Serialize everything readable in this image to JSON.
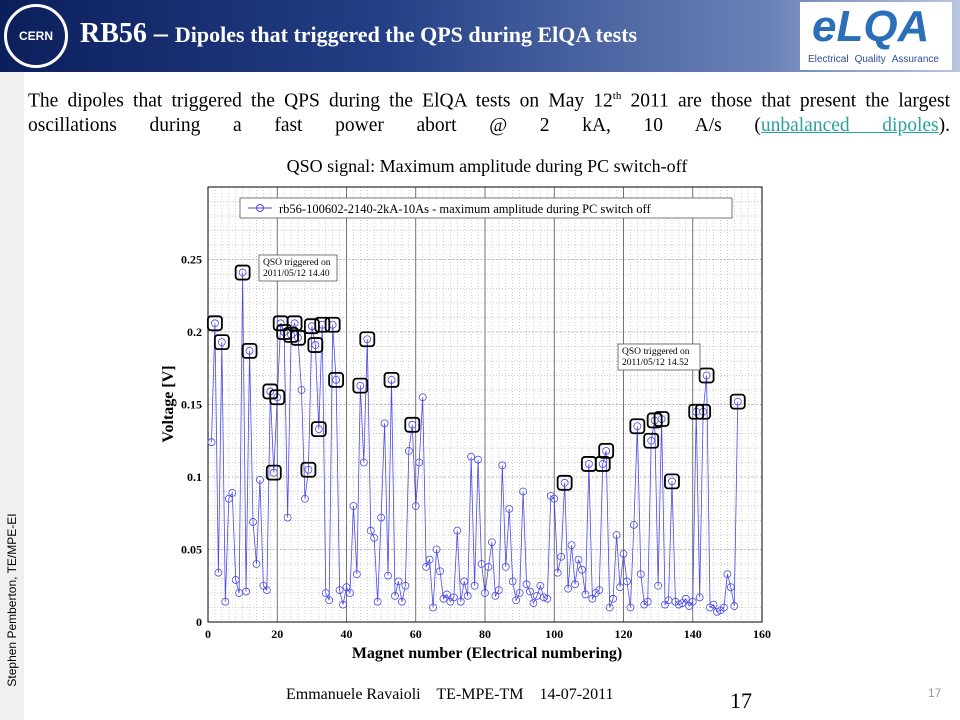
{
  "slide": {
    "title_lead": "RB56 – ",
    "title_rest": "Dipoles that triggered the QPS during ElQA tests",
    "logo_left": "CERN",
    "logo_right": "eLQA",
    "logo_right_sub": [
      "Electrical",
      "Quality",
      "Assurance"
    ],
    "body": [
      "The dipoles that triggered the QPS during the ElQA tests on May 12",
      "th",
      " 2011 are those that present the largest oscillations during a fast power abort @ 2 kA, 10 A/s (",
      "unbalanced dipoles",
      ")."
    ],
    "side_note": "Stephen Pemberton, TE/MPE-EI",
    "footer": "Emmanuele Ravaioli    TE-MPE-TM    14-07-2011",
    "page_big": "17",
    "page_small": "17"
  },
  "chart_data": {
    "type": "line",
    "title": "QSO signal: Maximum amplitude during PC switch-off",
    "x_label": "Magnet number (Electrical numbering)",
    "y_label": "Voltage [V]",
    "annotations": [
      [
        "QSO triggered on",
        "2011/05/12 14.40"
      ],
      [
        "QSO triggered on",
        "2011/05/12 14.52"
      ]
    ],
    "xlim": [
      0,
      160
    ],
    "xticks": [
      0,
      20,
      40,
      60,
      80,
      100,
      120,
      140,
      160
    ],
    "ylim": [
      0,
      0.3
    ],
    "yticks": [
      0,
      0.05,
      0.1,
      0.15,
      0.2,
      0.25
    ],
    "grid": true,
    "x_minor_step": 2,
    "y_minor_step": 0.01,
    "series": [
      {
        "name": "rb56-100602-2140-2kA-10As - maximum amplitude during PC switch off",
        "color": "#4a4ae6",
        "x": [
          1,
          2,
          3,
          4,
          5,
          6,
          7,
          8,
          9,
          10,
          11,
          12,
          13,
          14,
          15,
          16,
          17,
          18,
          19,
          20,
          21,
          22,
          23,
          24,
          25,
          26,
          27,
          28,
          29,
          30,
          31,
          32,
          33,
          34,
          35,
          36,
          37,
          38,
          39,
          40,
          41,
          42,
          43,
          44,
          45,
          46,
          47,
          48,
          49,
          50,
          51,
          52,
          53,
          54,
          55,
          56,
          57,
          58,
          59,
          60,
          61,
          62,
          63,
          64,
          65,
          66,
          67,
          68,
          69,
          70,
          71,
          72,
          73,
          74,
          75,
          76,
          77,
          78,
          79,
          80,
          81,
          82,
          83,
          84,
          85,
          86,
          87,
          88,
          89,
          90,
          91,
          92,
          93,
          94,
          95,
          96,
          97,
          98,
          99,
          100,
          101,
          102,
          103,
          104,
          105,
          106,
          107,
          108,
          109,
          110,
          111,
          112,
          113,
          114,
          115,
          116,
          117,
          118,
          119,
          120,
          121,
          122,
          123,
          124,
          125,
          126,
          127,
          128,
          129,
          130,
          131,
          132,
          133,
          134,
          135,
          136,
          137,
          138,
          139,
          140,
          141,
          142,
          143,
          144,
          145,
          146,
          147,
          148,
          149,
          150,
          151,
          152,
          153
        ],
        "values": [
          0.124,
          0.206,
          0.034,
          0.193,
          0.014,
          0.085,
          0.089,
          0.029,
          0.02,
          0.241,
          0.021,
          0.187,
          0.069,
          0.04,
          0.098,
          0.025,
          0.022,
          0.159,
          0.103,
          0.155,
          0.206,
          0.2,
          0.072,
          0.198,
          0.206,
          0.196,
          0.16,
          0.085,
          0.105,
          0.204,
          0.191,
          0.133,
          0.205,
          0.02,
          0.015,
          0.205,
          0.167,
          0.022,
          0.012,
          0.024,
          0.02,
          0.08,
          0.033,
          0.163,
          0.11,
          0.195,
          0.063,
          0.058,
          0.014,
          0.072,
          0.137,
          0.032,
          0.167,
          0.018,
          0.028,
          0.014,
          0.025,
          0.118,
          0.136,
          0.08,
          0.11,
          0.155,
          0.038,
          0.043,
          0.01,
          0.05,
          0.035,
          0.016,
          0.019,
          0.014,
          0.017,
          0.063,
          0.014,
          0.028,
          0.018,
          0.114,
          0.025,
          0.112,
          0.04,
          0.02,
          0.038,
          0.055,
          0.018,
          0.022,
          0.108,
          0.038,
          0.078,
          0.028,
          0.015,
          0.02,
          0.09,
          0.026,
          0.021,
          0.013,
          0.018,
          0.025,
          0.017,
          0.016,
          0.087,
          0.085,
          0.034,
          0.045,
          0.096,
          0.023,
          0.053,
          0.026,
          0.043,
          0.036,
          0.019,
          0.109,
          0.016,
          0.02,
          0.022,
          0.109,
          0.118,
          0.01,
          0.016,
          0.06,
          0.024,
          0.047,
          0.028,
          0.01,
          0.067,
          0.135,
          0.033,
          0.012,
          0.014,
          0.125,
          0.139,
          0.025,
          0.14,
          0.012,
          0.015,
          0.097,
          0.014,
          0.012,
          0.013,
          0.016,
          0.011,
          0.014,
          0.145,
          0.017,
          0.145,
          0.17,
          0.01,
          0.012,
          0.007,
          0.008,
          0.01,
          0.033,
          0.024,
          0.011,
          0.152
        ]
      }
    ],
    "highlight_x": [
      2,
      4,
      10,
      12,
      18,
      19,
      20,
      21,
      22,
      24,
      25,
      26,
      29,
      30,
      31,
      32,
      33,
      36,
      37,
      44,
      46,
      53,
      59,
      103,
      110,
      114,
      115,
      124,
      128,
      129,
      131,
      134,
      141,
      143,
      144,
      153
    ],
    "highlight_color": "#000000"
  }
}
